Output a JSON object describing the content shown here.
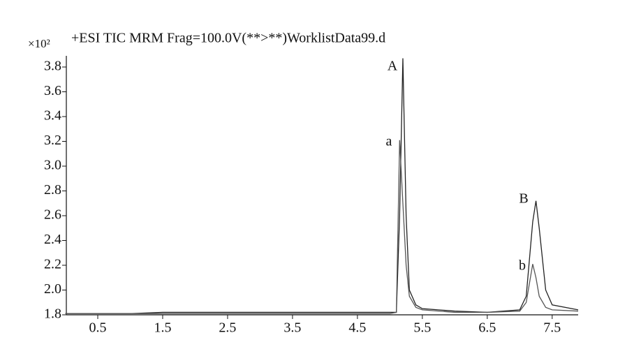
{
  "chart_data": {
    "type": "line",
    "title": "+ESI TIC MRM Frag=100.0V(**>**)WorklistData99.d",
    "y_multiplier": "×10²",
    "annotations": [
      "A",
      "a",
      "B",
      "b"
    ],
    "x": [
      0.0,
      0.5,
      1.0,
      1.5,
      2.0,
      2.5,
      3.0,
      3.5,
      4.0,
      4.5,
      5.0,
      5.1,
      5.15,
      5.2,
      5.25,
      5.3,
      5.4,
      5.5,
      6.0,
      6.5,
      7.0,
      7.1,
      7.2,
      7.25,
      7.3,
      7.4,
      7.5,
      7.9
    ],
    "series": [
      {
        "color": "#222222",
        "values": [
          1.81,
          1.81,
          1.81,
          1.82,
          1.82,
          1.82,
          1.82,
          1.82,
          1.82,
          1.82,
          1.82,
          1.82,
          2.6,
          3.87,
          2.6,
          2.0,
          1.88,
          1.85,
          1.83,
          1.82,
          1.84,
          1.95,
          2.55,
          2.72,
          2.5,
          2.0,
          1.88,
          1.84
        ]
      },
      {
        "color": "#555555",
        "values": [
          1.81,
          1.81,
          1.81,
          1.81,
          1.81,
          1.81,
          1.81,
          1.81,
          1.81,
          1.81,
          1.81,
          1.82,
          3.21,
          2.7,
          2.2,
          1.95,
          1.86,
          1.84,
          1.82,
          1.82,
          1.83,
          1.9,
          2.21,
          2.1,
          1.95,
          1.86,
          1.84,
          1.83
        ]
      }
    ],
    "xlim": [
      0,
      7.9
    ],
    "ylim": [
      1.8,
      3.8
    ],
    "xticks": [
      0.5,
      1.5,
      2.5,
      3.5,
      4.5,
      5.5,
      6.5,
      7.5
    ],
    "yticks": [
      1.8,
      {
        "value": 2,
        "label": "2.0"
      },
      2.2,
      2.4,
      2.6,
      2.8,
      {
        "value": 3,
        "label": "3.0"
      },
      3.2,
      3.4,
      3.6,
      3.8
    ]
  }
}
